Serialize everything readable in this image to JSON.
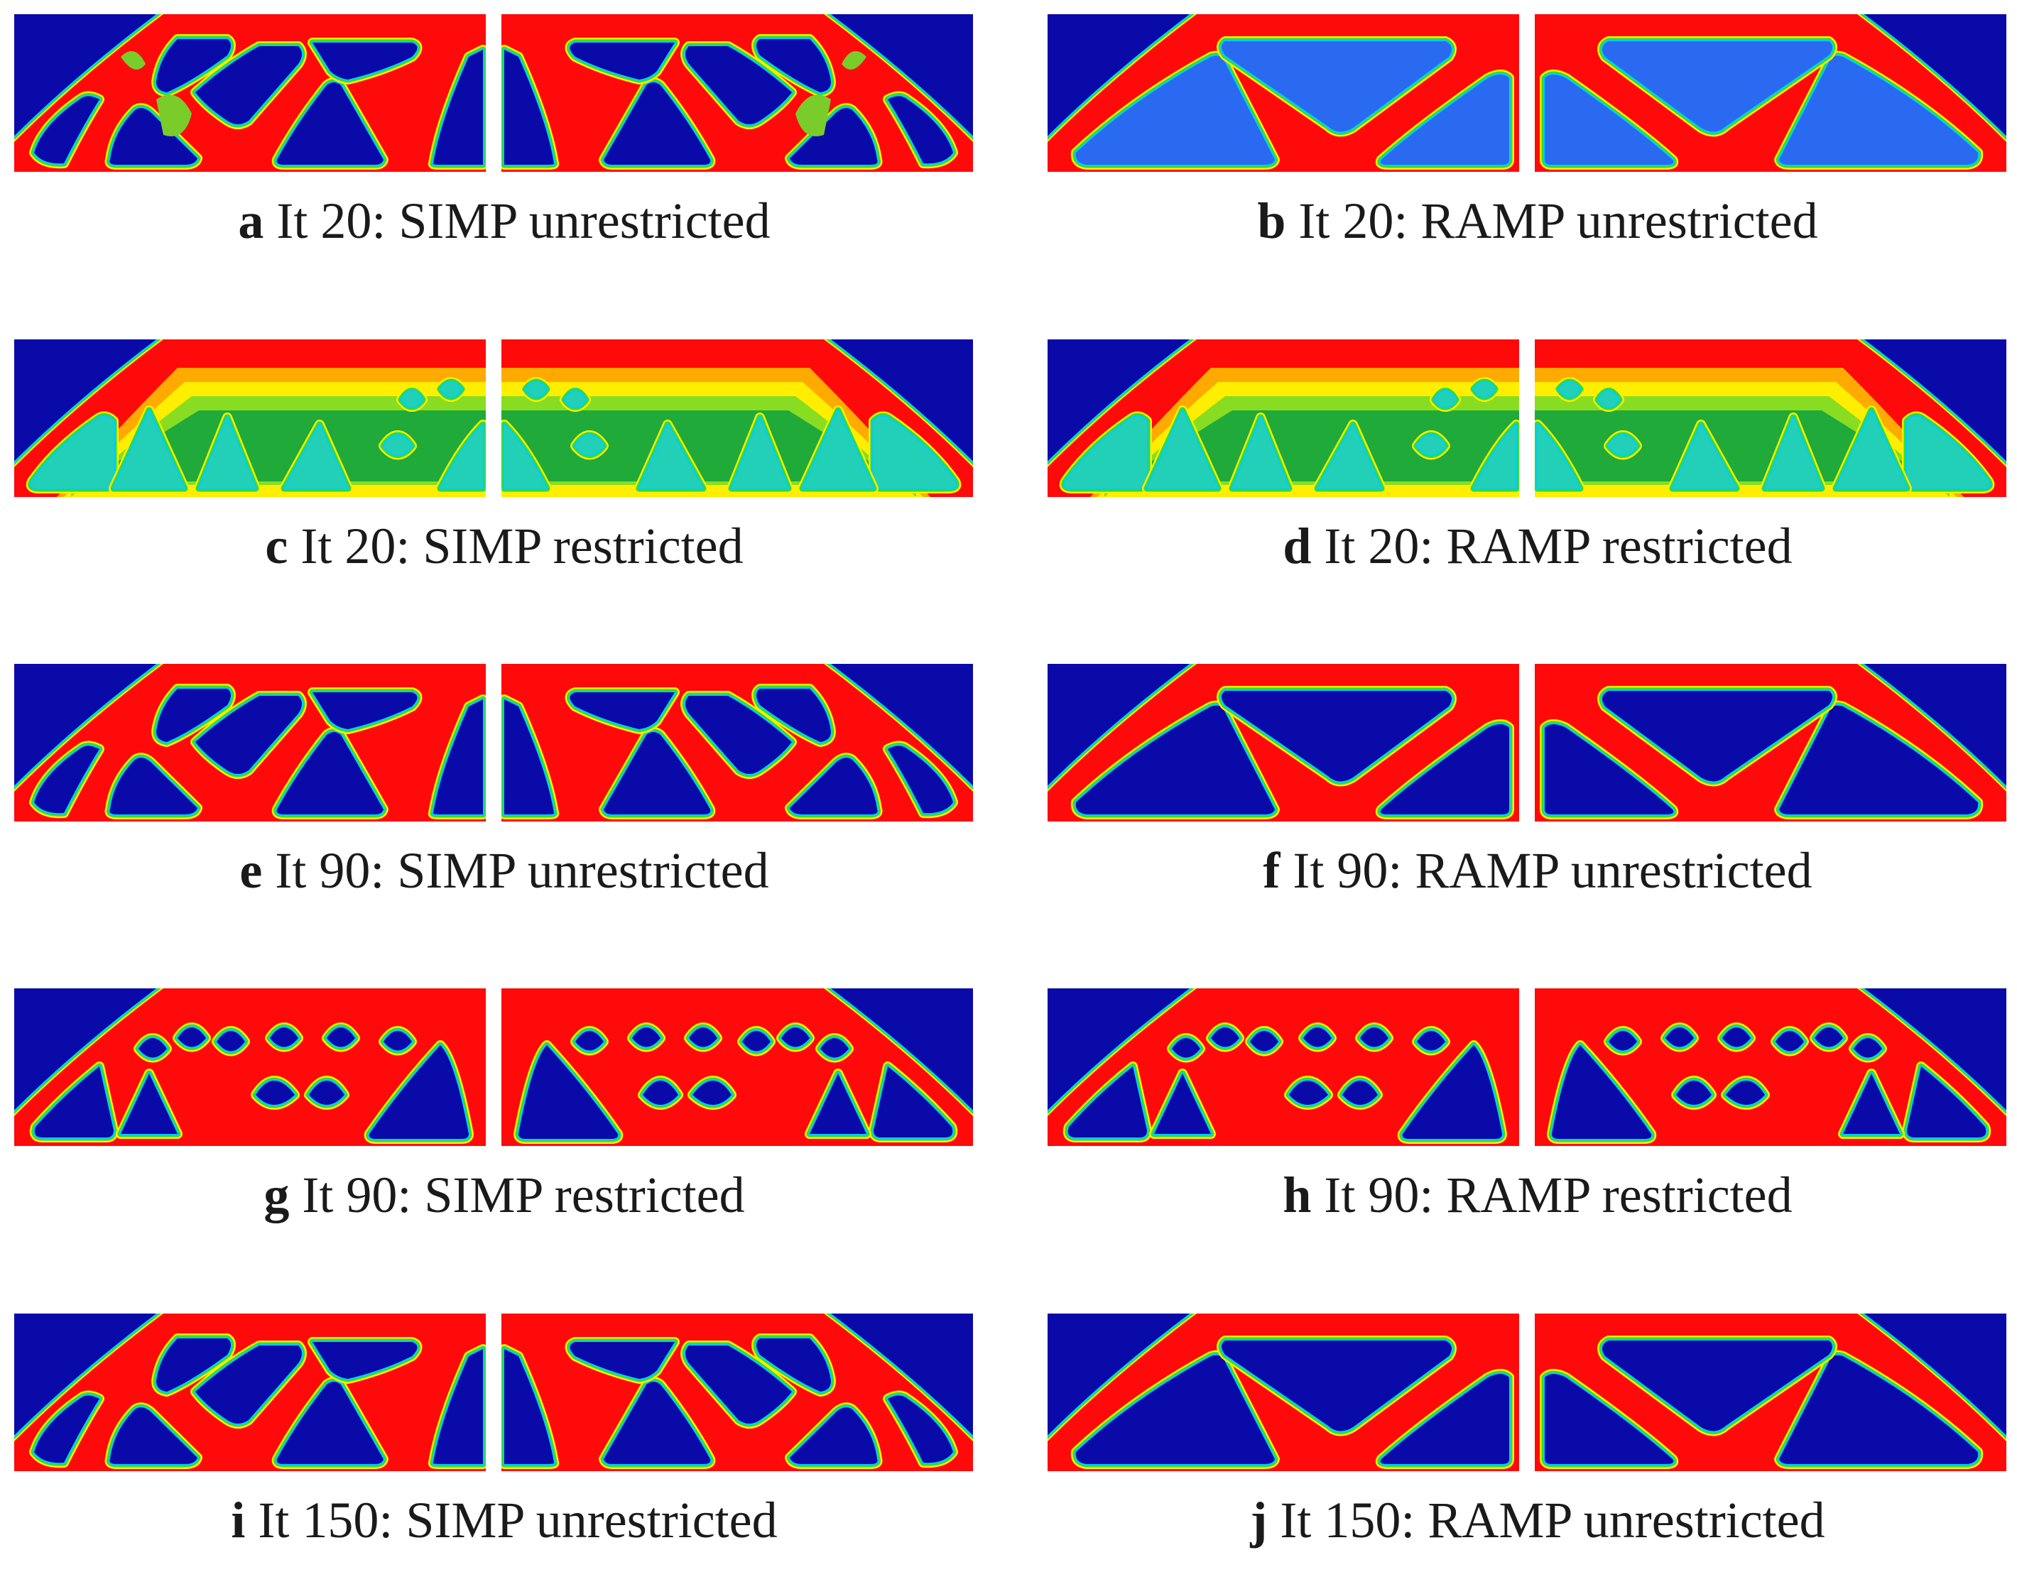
{
  "figure": {
    "panels": [
      {
        "letter": "a",
        "text": "It 20: SIMP unrestricted",
        "style": "simp",
        "state": "fuzzy"
      },
      {
        "letter": "b",
        "text": "It 20: RAMP unrestricted",
        "style": "ramp",
        "state": "fuzzy"
      },
      {
        "letter": "c",
        "text": "It 20: SIMP restricted",
        "style": "restricted",
        "state": "gradient"
      },
      {
        "letter": "d",
        "text": "It 20: RAMP restricted",
        "style": "restricted",
        "state": "gradient"
      },
      {
        "letter": "e",
        "text": "It 90: SIMP unrestricted",
        "style": "simp",
        "state": "converged"
      },
      {
        "letter": "f",
        "text": "It 90: RAMP unrestricted",
        "style": "ramp",
        "state": "converged"
      },
      {
        "letter": "g",
        "text": "It 90: SIMP restricted",
        "style": "fine",
        "state": "converged"
      },
      {
        "letter": "h",
        "text": "It 90: RAMP restricted",
        "style": "fine",
        "state": "converged"
      },
      {
        "letter": "i",
        "text": "It 150: SIMP unrestricted",
        "style": "simp",
        "state": "converged"
      },
      {
        "letter": "j",
        "text": "It 150: RAMP unrestricted",
        "style": "ramp",
        "state": "converged"
      }
    ]
  },
  "colors": {
    "void": "#0a0aa8",
    "solid": "#ff0a0a",
    "edge_outer": "#ffee00",
    "edge_mid": "#33dd33",
    "edge_inner": "#00ccff",
    "intermediate_green": "#1faa3a",
    "intermediate_cyan": "#22d0b8",
    "intermediate_blue": "#2a6af0"
  }
}
